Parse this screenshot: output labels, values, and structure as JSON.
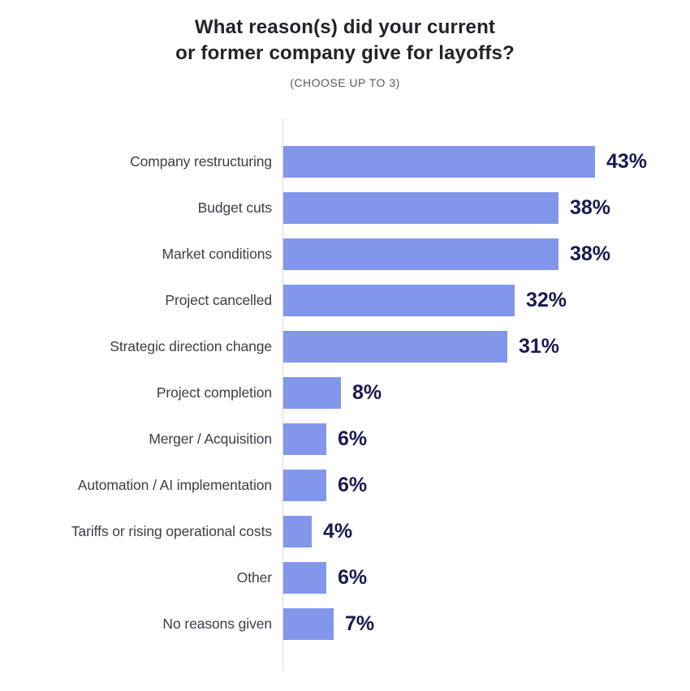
{
  "header": {
    "title": "What reason(s) did your current or former company give for layoffs?",
    "title_lines": [
      "What reason(s) did your current",
      "or former company give for layoffs?"
    ],
    "subtitle": "(CHOOSE UP TO 3)"
  },
  "colors": {
    "bar": "#8296ec",
    "value_label": "#191950",
    "title": "#22222a",
    "category_label": "#3d3d46",
    "subtitle": "#56595f",
    "axis": "#d9d9d9",
    "background": "#ffffff"
  },
  "chart_data": {
    "type": "bar",
    "orientation": "horizontal",
    "title": "What reason(s) did your current or former company give for layoffs?",
    "subtitle": "(CHOOSE UP TO 3)",
    "categories": [
      "Company restructuring",
      "Budget cuts",
      "Market conditions",
      "Project cancelled",
      "Strategic direction change",
      "Project completion",
      "Merger / Acquisition",
      "Automation / AI implementation",
      "Tariffs or rising operational costs",
      "Other",
      "No reasons given"
    ],
    "values": [
      43,
      38,
      38,
      32,
      31,
      8,
      6,
      6,
      4,
      6,
      7
    ],
    "value_labels": [
      "43%",
      "38%",
      "38%",
      "32%",
      "31%",
      "8%",
      "6%",
      "6%",
      "4%",
      "6%",
      "7%"
    ],
    "unit": "%",
    "xlim": [
      0,
      43
    ],
    "grid": false,
    "legend": false,
    "bar_value_label_position": "right-of-bar"
  }
}
